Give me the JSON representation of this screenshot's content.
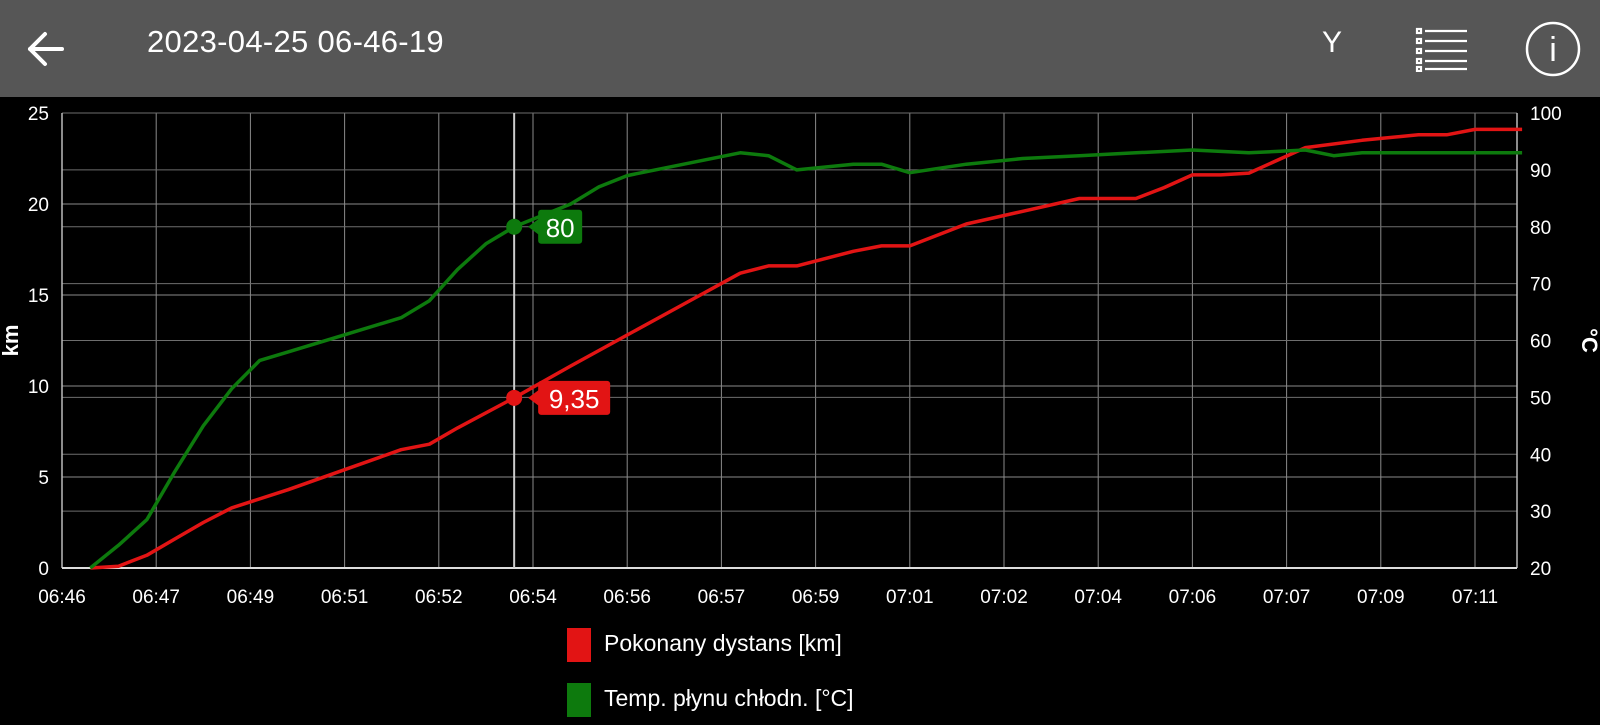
{
  "header": {
    "title": "2023-04-25 06-46-19",
    "y_label": "Y",
    "back_icon": "arrow-left-icon",
    "menu_icon": "list-icon",
    "info_icon": "info-icon",
    "background": "#565656"
  },
  "chart_data": {
    "type": "line",
    "xlabel": "",
    "ylabel_left": "km",
    "ylabel_right": "°C",
    "x_ticks": [
      "06:46",
      "06:47",
      "06:49",
      "06:51",
      "06:52",
      "06:54",
      "06:56",
      "06:57",
      "06:59",
      "07:01",
      "07:02",
      "07:04",
      "07:06",
      "07:07",
      "07:09",
      "07:11"
    ],
    "x_range": [
      "06:46:00",
      "07:11:50"
    ],
    "y_left_ticks": [
      "0",
      "5",
      "10",
      "15",
      "20",
      "25"
    ],
    "y_left_range": [
      0,
      25
    ],
    "y_right_ticks": [
      "20",
      "30",
      "40",
      "50",
      "60",
      "70",
      "80",
      "90",
      "100"
    ],
    "y_right_range": [
      20,
      100
    ],
    "grid": true,
    "legend_position": "bottom",
    "cursor": {
      "x": "06:54:00",
      "labels": {
        "temp": "80",
        "distance": "9,35"
      }
    },
    "series": [
      {
        "name": "Pokonany dystans [km]",
        "color": "#e21414",
        "axis": "left",
        "x": [
          "06:46:30",
          "06:47:00",
          "06:47:30",
          "06:48:00",
          "06:48:30",
          "06:49:00",
          "06:50:00",
          "06:51:00",
          "06:52:00",
          "06:52:30",
          "06:53:00",
          "06:54:00",
          "06:55:00",
          "06:56:00",
          "06:57:00",
          "06:58:00",
          "06:58:30",
          "06:59:00",
          "07:00:00",
          "07:00:30",
          "07:01:00",
          "07:02:00",
          "07:03:00",
          "07:04:00",
          "07:05:00",
          "07:05:30",
          "07:06:00",
          "07:06:30",
          "07:07:00",
          "07:08:00",
          "07:09:00",
          "07:10:00",
          "07:10:30",
          "07:11:00",
          "07:11:50"
        ],
        "values": [
          0,
          0.1,
          0.7,
          1.6,
          2.5,
          3.3,
          4.3,
          5.4,
          6.5,
          6.8,
          7.7,
          9.35,
          11.1,
          12.8,
          14.5,
          16.2,
          16.6,
          16.6,
          17.4,
          17.7,
          17.7,
          18.9,
          19.6,
          20.3,
          20.3,
          20.9,
          21.6,
          21.6,
          21.7,
          23.1,
          23.5,
          23.8,
          23.8,
          24.1,
          24.1
        ]
      },
      {
        "name": "Temp. płynu chłodn. [°C]",
        "color": "#0d7a0d",
        "axis": "right",
        "x": [
          "06:46:30",
          "06:47:00",
          "06:47:30",
          "06:48:00",
          "06:48:30",
          "06:49:00",
          "06:49:30",
          "06:50:00",
          "06:51:00",
          "06:52:00",
          "06:52:30",
          "06:53:00",
          "06:53:30",
          "06:54:00",
          "06:55:00",
          "06:55:30",
          "06:56:00",
          "06:57:00",
          "06:58:00",
          "06:58:30",
          "06:59:00",
          "07:00:00",
          "07:00:30",
          "07:01:00",
          "07:02:00",
          "07:03:00",
          "07:04:00",
          "07:05:00",
          "07:06:00",
          "07:07:00",
          "07:08:00",
          "07:08:30",
          "07:09:00",
          "07:11:50"
        ],
        "values": [
          20,
          24,
          28.5,
          37,
          45,
          51.5,
          56.5,
          58,
          61,
          64,
          67,
          72.5,
          77,
          80,
          84,
          87,
          89,
          91,
          93,
          92.5,
          90,
          91,
          91,
          89.5,
          91,
          92,
          92.5,
          93,
          93.5,
          93,
          93.5,
          92.5,
          93,
          93
        ]
      }
    ]
  },
  "legend": {
    "items": [
      {
        "label": "Pokonany dystans [km]",
        "color": "#e21414"
      },
      {
        "label": "Temp. płynu chłodn. [°C]",
        "color": "#0d7a0d"
      }
    ]
  }
}
